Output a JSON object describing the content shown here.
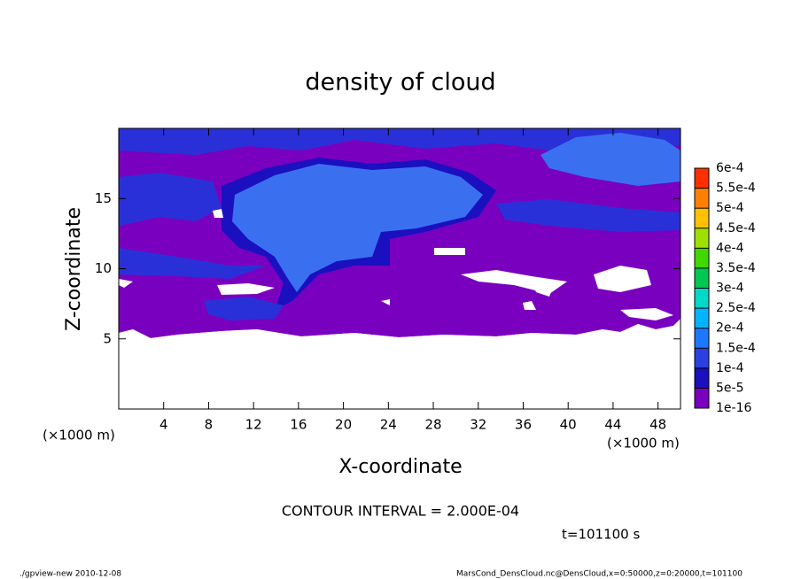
{
  "chart_data": {
    "type": "contour",
    "title": "density of cloud",
    "xlabel": "X-coordinate",
    "ylabel": "Z-coordinate",
    "xunit": "(×1000 m)",
    "yunit": "(×1000 m)",
    "xlim": [
      0,
      50
    ],
    "xticks": [
      4,
      8,
      12,
      16,
      20,
      24,
      28,
      32,
      36,
      40,
      44,
      48
    ],
    "ylim": [
      0,
      20
    ],
    "yticks": [
      5,
      10,
      15
    ],
    "colorbar": {
      "levels": [
        {
          "value": 1e-16,
          "label": "1e-16"
        },
        {
          "value": 5e-05,
          "label": "5e-5"
        },
        {
          "value": 0.0001,
          "label": "1e-4"
        },
        {
          "value": 0.00015,
          "label": "1.5e-4"
        },
        {
          "value": 0.0002,
          "label": "2e-4"
        },
        {
          "value": 0.00025,
          "label": "2.5e-4"
        },
        {
          "value": 0.0003,
          "label": "3e-4"
        },
        {
          "value": 0.00035,
          "label": "3.5e-4"
        },
        {
          "value": 0.0004,
          "label": "4e-4"
        },
        {
          "value": 0.00045,
          "label": "4.5e-4"
        },
        {
          "value": 0.0005,
          "label": "5e-4"
        },
        {
          "value": 0.00055,
          "label": "5.5e-4"
        },
        {
          "value": 0.0006,
          "label": "6e-4"
        }
      ],
      "colors": [
        "#7a00bf",
        "#1a10c0",
        "#2a40e0",
        "#1e78ff",
        "#00b4ff",
        "#00d8c8",
        "#00c850",
        "#40d800",
        "#a0e000",
        "#ffc000",
        "#ff8000",
        "#ff3000",
        "#ff8080"
      ]
    },
    "contour_interval": "CONTOUR INTERVAL = 2.000E-04",
    "time": "t=101100 s",
    "footer_left": "./gpview-new  2010-12-08",
    "footer_right": "MarsCond_DensCloud.nc@DensCloud,x=0:50000,z=0:20000,t=101100"
  }
}
